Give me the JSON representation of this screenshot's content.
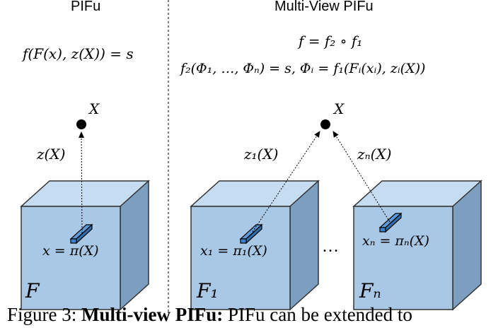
{
  "left_panel": {
    "title": "PIFu",
    "formula": "f(F(x), z(X)) = s",
    "point_label": "X",
    "depth_label": "z(X)",
    "pixel_label": "x = π(X)",
    "feature_label": "F"
  },
  "right_panel": {
    "title": "Multi-View PIFu",
    "formula_1": "f = f₂ ∘ f₁",
    "formula_2": "f₂(Φ₁, …, Φₙ) = s,  Φᵢ = f₁(Fᵢ(xᵢ), zᵢ(X))",
    "point_label": "X",
    "depth_label_1": "z₁(X)",
    "depth_label_n": "zₙ(X)",
    "pixel_label_1": "x₁ = π₁(X)",
    "pixel_label_n": "xₙ = πₙ(X)",
    "feature_label_1": "F₁",
    "feature_label_n": "Fₙ",
    "ellipsis": "…"
  },
  "caption": {
    "prefix": "Figure 3:",
    "bold": "Multi-view PIFu:",
    "rest": "PIFu can be extended to"
  },
  "colors": {
    "cube_front": "#a9c8e6",
    "cube_top": "#c6dcf0",
    "cube_side": "#7c9fc0",
    "stroke": "#333333"
  }
}
